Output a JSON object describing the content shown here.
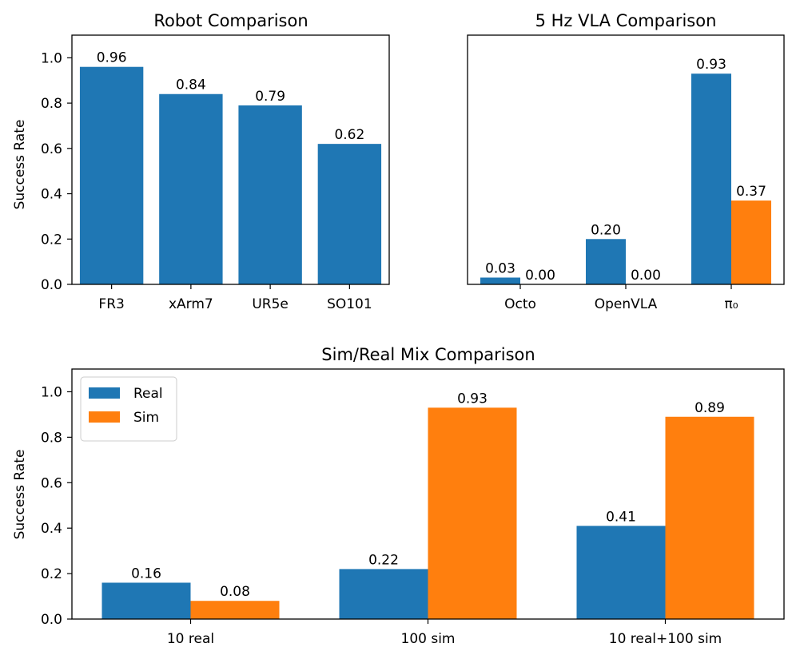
{
  "colors": {
    "real": "#1f77b4",
    "sim": "#ff7f0e",
    "axis": "#000000"
  },
  "chart_data": [
    {
      "id": "robot",
      "type": "bar",
      "title": "Robot Comparison",
      "xlabel": "",
      "ylabel": "Success Rate",
      "ylim": [
        0,
        1.1
      ],
      "yticks": [
        "0.0",
        "0.2",
        "0.4",
        "0.6",
        "0.8",
        "1.0"
      ],
      "categories": [
        "FR3",
        "xArm7",
        "UR5e",
        "SO101"
      ],
      "series": [
        {
          "name": "Real",
          "color": "#1f77b4",
          "values": [
            0.96,
            0.84,
            0.79,
            0.62
          ],
          "labels": [
            "0.96",
            "0.84",
            "0.79",
            "0.62"
          ]
        }
      ],
      "legend": null
    },
    {
      "id": "vla",
      "type": "bar",
      "title": "5 Hz VLA Comparison",
      "xlabel": "",
      "ylabel": "",
      "ylim": [
        0,
        1.1
      ],
      "yticks": [],
      "categories": [
        "Octo",
        "OpenVLA",
        "π₀"
      ],
      "series": [
        {
          "name": "Real",
          "color": "#1f77b4",
          "values": [
            0.03,
            0.2,
            0.93
          ],
          "labels": [
            "0.03",
            "0.20",
            "0.93"
          ]
        },
        {
          "name": "Sim",
          "color": "#ff7f0e",
          "values": [
            0.0,
            0.0,
            0.37
          ],
          "labels": [
            "0.00",
            "0.00",
            "0.37"
          ]
        }
      ],
      "legend": null
    },
    {
      "id": "mix",
      "type": "bar",
      "title": "Sim/Real Mix Comparison",
      "xlabel": "",
      "ylabel": "Success Rate",
      "ylim": [
        0,
        1.1
      ],
      "yticks": [
        "0.0",
        "0.2",
        "0.4",
        "0.6",
        "0.8",
        "1.0"
      ],
      "categories": [
        "10 real",
        "100 sim",
        "10 real+100 sim"
      ],
      "series": [
        {
          "name": "Real",
          "color": "#1f77b4",
          "values": [
            0.16,
            0.22,
            0.41
          ],
          "labels": [
            "0.16",
            "0.22",
            "0.41"
          ]
        },
        {
          "name": "Sim",
          "color": "#ff7f0e",
          "values": [
            0.08,
            0.93,
            0.89
          ],
          "labels": [
            "0.08",
            "0.93",
            "0.89"
          ]
        }
      ],
      "legend": "upper-left"
    }
  ]
}
